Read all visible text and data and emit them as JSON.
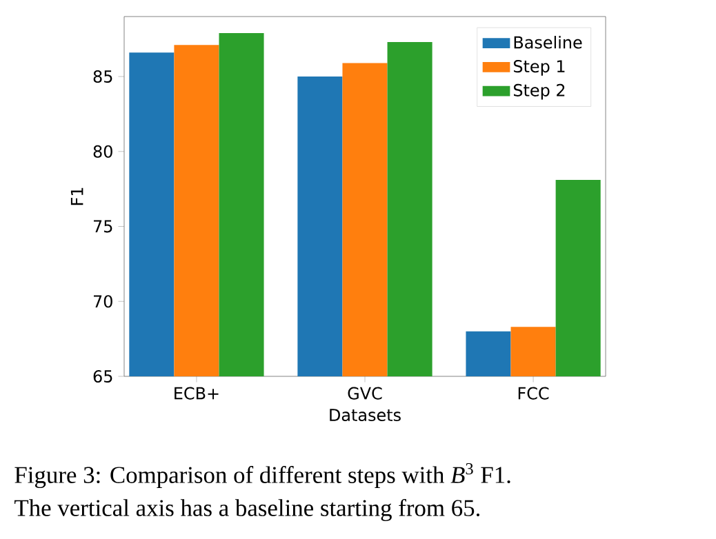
{
  "chart_data": {
    "type": "bar",
    "xlabel": "Datasets",
    "ylabel": "F1",
    "categories": [
      "ECB+",
      "GVC",
      "FCC"
    ],
    "series": [
      {
        "name": "Baseline",
        "color": "#1f77b4",
        "values": [
          86.6,
          85.0,
          68.0
        ]
      },
      {
        "name": "Step 1",
        "color": "#ff7f0e",
        "values": [
          87.1,
          85.9,
          68.3
        ]
      },
      {
        "name": "Step 2",
        "color": "#2ca02c",
        "values": [
          87.9,
          87.3,
          78.1
        ]
      }
    ],
    "ylim": [
      65,
      89
    ],
    "yticks": [
      65,
      70,
      75,
      80,
      85
    ],
    "legend": "top right",
    "annotations": [
      "Figure 3: Comparison of different steps with *B*$^{3}$ F1.",
      "The vertical axis has a baseline starting from 65."
    ]
  }
}
